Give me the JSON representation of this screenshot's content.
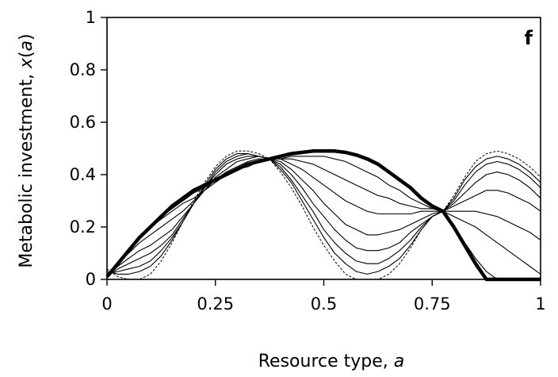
{
  "chart_data": {
    "type": "line",
    "title": "",
    "panel_label": "f",
    "xlabel": {
      "text": "Resource type, ",
      "var": "a"
    },
    "ylabel": {
      "text": "Metabolic investment, ",
      "var": "x",
      "paren_open": "(",
      "arg": "a",
      "paren_close": ")"
    },
    "xlim": [
      0,
      1
    ],
    "ylim": [
      0,
      1
    ],
    "xticks": [
      0,
      0.25,
      0.5,
      0.75,
      1
    ],
    "xtick_labels": [
      "0",
      "0.25",
      "0.5",
      "0.75",
      "1"
    ],
    "yticks": [
      0,
      0.2,
      0.4,
      0.6,
      0.8,
      1
    ],
    "ytick_labels": [
      "0",
      "0.2",
      "0.4",
      "0.6",
      "0.8",
      "1"
    ],
    "grid": false,
    "legend": "none",
    "curve_model": {
      "description_free_params": "each curve: y = A*|sin(pi*a/0.775)| + B on [0,0.775], right hump scaled to 0.26 at a=0.775, clipped at 0",
      "first_hump_end": 0.775,
      "junction_y": 0.26
    },
    "series": [
      {
        "style": "dashed",
        "amp_left": 0.49,
        "offset_left": -0.01,
        "right_peak": 0.49,
        "right_peak_x": 0.905,
        "x": [
          0,
          0.025,
          0.05,
          0.075,
          0.1,
          0.125,
          0.15,
          0.175,
          0.2,
          0.225,
          0.25,
          0.275,
          0.3,
          0.325,
          0.35,
          0.375,
          0.4,
          0.425,
          0.45,
          0.475,
          0.5,
          0.525,
          0.55,
          0.575,
          0.6,
          0.625,
          0.65,
          0.675,
          0.7,
          0.725,
          0.75,
          0.775,
          0.8,
          0.825,
          0.85,
          0.875,
          0.9,
          0.925,
          0.95,
          0.975,
          1.0
        ],
        "y": [
          0.04,
          0.01,
          0.0,
          0.0,
          0.02,
          0.07,
          0.14,
          0.22,
          0.3,
          0.37,
          0.43,
          0.47,
          0.49,
          0.49,
          0.48,
          0.46,
          0.41,
          0.35,
          0.28,
          0.2,
          0.13,
          0.07,
          0.02,
          0.0,
          0.0,
          0.0,
          0.02,
          0.06,
          0.12,
          0.19,
          0.24,
          0.26,
          0.32,
          0.39,
          0.45,
          0.48,
          0.49,
          0.48,
          0.46,
          0.43,
          0.39
        ]
      },
      {
        "style": "thin",
        "x": [
          0,
          0.025,
          0.05,
          0.075,
          0.1,
          0.125,
          0.15,
          0.175,
          0.2,
          0.225,
          0.25,
          0.275,
          0.3,
          0.325,
          0.35,
          0.375,
          0.4,
          0.425,
          0.45,
          0.475,
          0.5,
          0.525,
          0.55,
          0.575,
          0.6,
          0.625,
          0.65,
          0.675,
          0.7,
          0.725,
          0.75,
          0.775,
          0.8,
          0.825,
          0.85,
          0.875,
          0.9,
          0.925,
          0.95,
          0.975,
          1.0
        ],
        "y": [
          0.03,
          0.02,
          0.02,
          0.03,
          0.05,
          0.09,
          0.15,
          0.22,
          0.29,
          0.36,
          0.42,
          0.46,
          0.48,
          0.48,
          0.47,
          0.46,
          0.42,
          0.37,
          0.3,
          0.23,
          0.16,
          0.1,
          0.06,
          0.03,
          0.02,
          0.03,
          0.05,
          0.08,
          0.13,
          0.19,
          0.24,
          0.26,
          0.31,
          0.38,
          0.43,
          0.46,
          0.47,
          0.46,
          0.44,
          0.41,
          0.37
        ]
      },
      {
        "style": "thin",
        "x": [
          0,
          0.025,
          0.05,
          0.075,
          0.1,
          0.125,
          0.15,
          0.175,
          0.2,
          0.225,
          0.25,
          0.275,
          0.3,
          0.325,
          0.35,
          0.375,
          0.4,
          0.425,
          0.45,
          0.475,
          0.5,
          0.525,
          0.55,
          0.575,
          0.6,
          0.625,
          0.65,
          0.675,
          0.7,
          0.725,
          0.75,
          0.775,
          0.8,
          0.825,
          0.85,
          0.875,
          0.9,
          0.925,
          0.95,
          0.975,
          1.0
        ],
        "y": [
          0.02,
          0.03,
          0.04,
          0.05,
          0.07,
          0.11,
          0.16,
          0.22,
          0.29,
          0.35,
          0.41,
          0.45,
          0.47,
          0.48,
          0.47,
          0.46,
          0.43,
          0.38,
          0.32,
          0.26,
          0.19,
          0.14,
          0.1,
          0.07,
          0.06,
          0.06,
          0.08,
          0.11,
          0.15,
          0.2,
          0.24,
          0.26,
          0.3,
          0.36,
          0.41,
          0.44,
          0.45,
          0.44,
          0.42,
          0.39,
          0.35
        ]
      },
      {
        "style": "thin",
        "x": [
          0,
          0.025,
          0.05,
          0.075,
          0.1,
          0.125,
          0.15,
          0.175,
          0.2,
          0.225,
          0.25,
          0.275,
          0.3,
          0.325,
          0.35,
          0.375,
          0.4,
          0.425,
          0.45,
          0.475,
          0.5,
          0.525,
          0.55,
          0.575,
          0.6,
          0.625,
          0.65,
          0.675,
          0.7,
          0.725,
          0.75,
          0.775,
          0.8,
          0.825,
          0.85,
          0.875,
          0.9,
          0.925,
          0.95,
          0.975,
          1.0
        ],
        "y": [
          0.01,
          0.04,
          0.06,
          0.08,
          0.1,
          0.13,
          0.17,
          0.23,
          0.29,
          0.35,
          0.4,
          0.44,
          0.46,
          0.47,
          0.47,
          0.46,
          0.44,
          0.4,
          0.35,
          0.29,
          0.24,
          0.19,
          0.15,
          0.12,
          0.11,
          0.11,
          0.12,
          0.14,
          0.18,
          0.21,
          0.24,
          0.26,
          0.29,
          0.33,
          0.37,
          0.4,
          0.41,
          0.4,
          0.38,
          0.35,
          0.31
        ]
      },
      {
        "style": "thin",
        "x": [
          0,
          0.025,
          0.05,
          0.075,
          0.1,
          0.125,
          0.15,
          0.175,
          0.2,
          0.225,
          0.25,
          0.275,
          0.3,
          0.325,
          0.35,
          0.375,
          0.4,
          0.425,
          0.45,
          0.475,
          0.5,
          0.525,
          0.55,
          0.575,
          0.6,
          0.625,
          0.65,
          0.675,
          0.7,
          0.725,
          0.75,
          0.775,
          0.8,
          0.825,
          0.85,
          0.875,
          0.9,
          0.925,
          0.95,
          0.975,
          1.0
        ],
        "y": [
          0.01,
          0.05,
          0.08,
          0.11,
          0.13,
          0.16,
          0.19,
          0.24,
          0.29,
          0.34,
          0.39,
          0.42,
          0.45,
          0.46,
          0.47,
          0.46,
          0.45,
          0.42,
          0.38,
          0.34,
          0.29,
          0.25,
          0.21,
          0.19,
          0.17,
          0.17,
          0.18,
          0.19,
          0.21,
          0.23,
          0.25,
          0.26,
          0.28,
          0.3,
          0.32,
          0.34,
          0.34,
          0.33,
          0.31,
          0.29,
          0.26
        ]
      },
      {
        "style": "thin",
        "x": [
          0,
          0.025,
          0.05,
          0.075,
          0.1,
          0.125,
          0.15,
          0.175,
          0.2,
          0.225,
          0.25,
          0.275,
          0.3,
          0.325,
          0.35,
          0.375,
          0.4,
          0.425,
          0.45,
          0.475,
          0.5,
          0.525,
          0.55,
          0.575,
          0.6,
          0.625,
          0.65,
          0.675,
          0.7,
          0.725,
          0.75,
          0.775,
          0.8,
          0.825,
          0.85,
          0.875,
          0.9,
          0.925,
          0.95,
          0.975,
          1.0
        ],
        "y": [
          0.01,
          0.06,
          0.1,
          0.14,
          0.17,
          0.2,
          0.23,
          0.26,
          0.3,
          0.34,
          0.38,
          0.41,
          0.43,
          0.45,
          0.46,
          0.46,
          0.46,
          0.44,
          0.42,
          0.39,
          0.36,
          0.33,
          0.3,
          0.28,
          0.26,
          0.25,
          0.25,
          0.25,
          0.25,
          0.26,
          0.26,
          0.26,
          0.26,
          0.26,
          0.26,
          0.25,
          0.24,
          0.22,
          0.2,
          0.18,
          0.15
        ]
      },
      {
        "style": "thin",
        "x": [
          0,
          0.025,
          0.05,
          0.075,
          0.1,
          0.125,
          0.15,
          0.175,
          0.2,
          0.225,
          0.25,
          0.275,
          0.3,
          0.325,
          0.35,
          0.375,
          0.4,
          0.425,
          0.45,
          0.475,
          0.5,
          0.525,
          0.55,
          0.575,
          0.6,
          0.625,
          0.65,
          0.675,
          0.7,
          0.725,
          0.75,
          0.775,
          0.8,
          0.825,
          0.85,
          0.875,
          0.9,
          0.925,
          0.95,
          0.975,
          1.0
        ],
        "y": [
          0.01,
          0.06,
          0.11,
          0.16,
          0.2,
          0.23,
          0.26,
          0.29,
          0.31,
          0.34,
          0.37,
          0.4,
          0.42,
          0.44,
          0.45,
          0.46,
          0.46,
          0.46,
          0.45,
          0.44,
          0.42,
          0.4,
          0.38,
          0.36,
          0.34,
          0.32,
          0.31,
          0.29,
          0.28,
          0.27,
          0.27,
          0.26,
          0.24,
          0.22,
          0.2,
          0.17,
          0.14,
          0.11,
          0.08,
          0.05,
          0.02
        ]
      },
      {
        "style": "thin",
        "x": [
          0,
          0.025,
          0.05,
          0.075,
          0.1,
          0.125,
          0.15,
          0.175,
          0.2,
          0.225,
          0.25,
          0.275,
          0.3,
          0.325,
          0.35,
          0.375,
          0.4,
          0.425,
          0.45,
          0.475,
          0.5,
          0.525,
          0.55,
          0.575,
          0.6,
          0.625,
          0.65,
          0.675,
          0.7,
          0.725,
          0.75,
          0.775,
          0.8,
          0.825,
          0.85,
          0.875,
          0.9,
          0.925,
          0.95,
          0.975,
          1.0
        ],
        "y": [
          0.01,
          0.06,
          0.11,
          0.16,
          0.2,
          0.24,
          0.27,
          0.3,
          0.33,
          0.35,
          0.38,
          0.4,
          0.42,
          0.43,
          0.45,
          0.46,
          0.46,
          0.47,
          0.47,
          0.47,
          0.47,
          0.46,
          0.45,
          0.43,
          0.41,
          0.39,
          0.36,
          0.34,
          0.31,
          0.29,
          0.27,
          0.26,
          0.2,
          0.14,
          0.08,
          0.03,
          0.0,
          0.0,
          0.0,
          0.0,
          0.0
        ]
      },
      {
        "style": "thick",
        "x": [
          0,
          0.025,
          0.05,
          0.075,
          0.1,
          0.125,
          0.15,
          0.175,
          0.2,
          0.225,
          0.25,
          0.275,
          0.3,
          0.325,
          0.35,
          0.375,
          0.4,
          0.425,
          0.45,
          0.475,
          0.5,
          0.525,
          0.55,
          0.575,
          0.6,
          0.625,
          0.65,
          0.675,
          0.7,
          0.725,
          0.75,
          0.775,
          0.8,
          0.825,
          0.85,
          0.875,
          0.9,
          0.925,
          0.95,
          0.975,
          1.0
        ],
        "y": [
          0.01,
          0.06,
          0.11,
          0.16,
          0.2,
          0.24,
          0.28,
          0.31,
          0.34,
          0.36,
          0.38,
          0.4,
          0.42,
          0.44,
          0.45,
          0.46,
          0.47,
          0.48,
          0.485,
          0.49,
          0.49,
          0.49,
          0.485,
          0.475,
          0.46,
          0.44,
          0.41,
          0.38,
          0.35,
          0.31,
          0.28,
          0.26,
          0.2,
          0.13,
          0.06,
          0.0,
          0.0,
          0.0,
          0.0,
          0.0,
          0.0
        ]
      }
    ]
  }
}
